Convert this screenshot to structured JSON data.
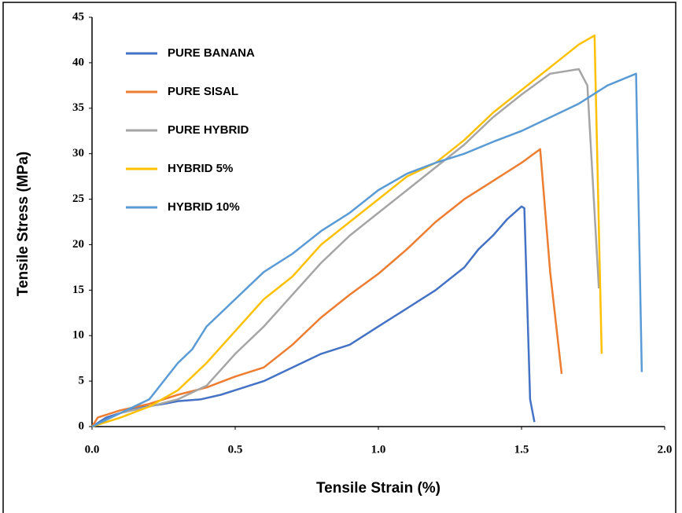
{
  "chart_data": {
    "type": "line",
    "xlabel": "Tensile Strain (%)",
    "ylabel": "Tensile Stress (MPa)",
    "xlim": [
      0,
      2.0
    ],
    "xticks": [
      {
        "value": 0,
        "label": "0.0"
      },
      0.5,
      {
        "value": 1,
        "label": "1.0"
      },
      1.5,
      {
        "value": 2,
        "label": "2.0"
      }
    ],
    "ylim": [
      0,
      45
    ],
    "yticks": [
      0,
      5,
      10,
      15,
      20,
      25,
      30,
      35,
      40,
      45
    ],
    "grid": false,
    "legend": "upper left",
    "series": [
      {
        "name": "PURE BANANA",
        "color": "#4472c4",
        "x": [
          0,
          0.05,
          0.15,
          0.25,
          0.3,
          0.38,
          0.45,
          0.5,
          0.6,
          0.7,
          0.8,
          0.9,
          1.0,
          1.1,
          1.2,
          1.3,
          1.35,
          1.4,
          1.45,
          1.5,
          1.51,
          1.53,
          1.545
        ],
        "values": [
          0,
          1,
          2,
          2.5,
          2.8,
          3,
          3.5,
          4,
          5,
          6.5,
          8,
          9,
          11,
          13,
          15,
          17.5,
          19.5,
          21,
          22.8,
          24.2,
          24,
          3,
          0.5
        ]
      },
      {
        "name": "PURE SISAL",
        "color": "#ed7d31",
        "x": [
          0,
          0.02,
          0.1,
          0.2,
          0.3,
          0.4,
          0.5,
          0.6,
          0.7,
          0.8,
          0.9,
          1.0,
          1.1,
          1.2,
          1.3,
          1.4,
          1.5,
          1.565,
          1.6,
          1.64
        ],
        "values": [
          0,
          1,
          1.8,
          2.5,
          3.5,
          4.3,
          5.5,
          6.5,
          9,
          12,
          14.5,
          16.8,
          19.5,
          22.5,
          25,
          27,
          29,
          30.5,
          17,
          5.8
        ]
      },
      {
        "name": "PURE HYBRID",
        "color": "#a5a5a5",
        "x": [
          0,
          0.1,
          0.2,
          0.3,
          0.4,
          0.5,
          0.6,
          0.7,
          0.8,
          0.9,
          1.0,
          1.1,
          1.2,
          1.3,
          1.4,
          1.5,
          1.6,
          1.7,
          1.73,
          1.77
        ],
        "values": [
          0,
          1.5,
          2.2,
          3,
          4.5,
          8,
          11,
          14.5,
          18,
          21,
          23.5,
          26,
          28.5,
          31,
          34,
          36.5,
          38.8,
          39.3,
          37.5,
          15.2
        ]
      },
      {
        "name": "HYBRID 5%",
        "color": "#ffc000",
        "x": [
          0,
          0.1,
          0.2,
          0.3,
          0.4,
          0.5,
          0.6,
          0.7,
          0.8,
          0.9,
          1.0,
          1.1,
          1.2,
          1.3,
          1.4,
          1.5,
          1.6,
          1.7,
          1.755,
          1.78
        ],
        "values": [
          0,
          1,
          2.2,
          4,
          7,
          10.5,
          14,
          16.5,
          20,
          22.5,
          25,
          27.5,
          29,
          31.5,
          34.5,
          37,
          39.5,
          42,
          43,
          8
        ]
      },
      {
        "name": "HYBRID 10%",
        "color": "#5b9bd5",
        "x": [
          0,
          0.1,
          0.2,
          0.25,
          0.3,
          0.35,
          0.4,
          0.5,
          0.6,
          0.7,
          0.8,
          0.9,
          1.0,
          1.1,
          1.2,
          1.3,
          1.4,
          1.5,
          1.6,
          1.7,
          1.8,
          1.9,
          1.92
        ],
        "values": [
          0,
          1.5,
          3,
          5,
          7,
          8.5,
          11,
          14,
          17,
          19,
          21.5,
          23.5,
          26,
          27.8,
          29,
          30,
          31.3,
          32.5,
          34,
          35.5,
          37.5,
          38.8,
          6
        ]
      }
    ]
  }
}
